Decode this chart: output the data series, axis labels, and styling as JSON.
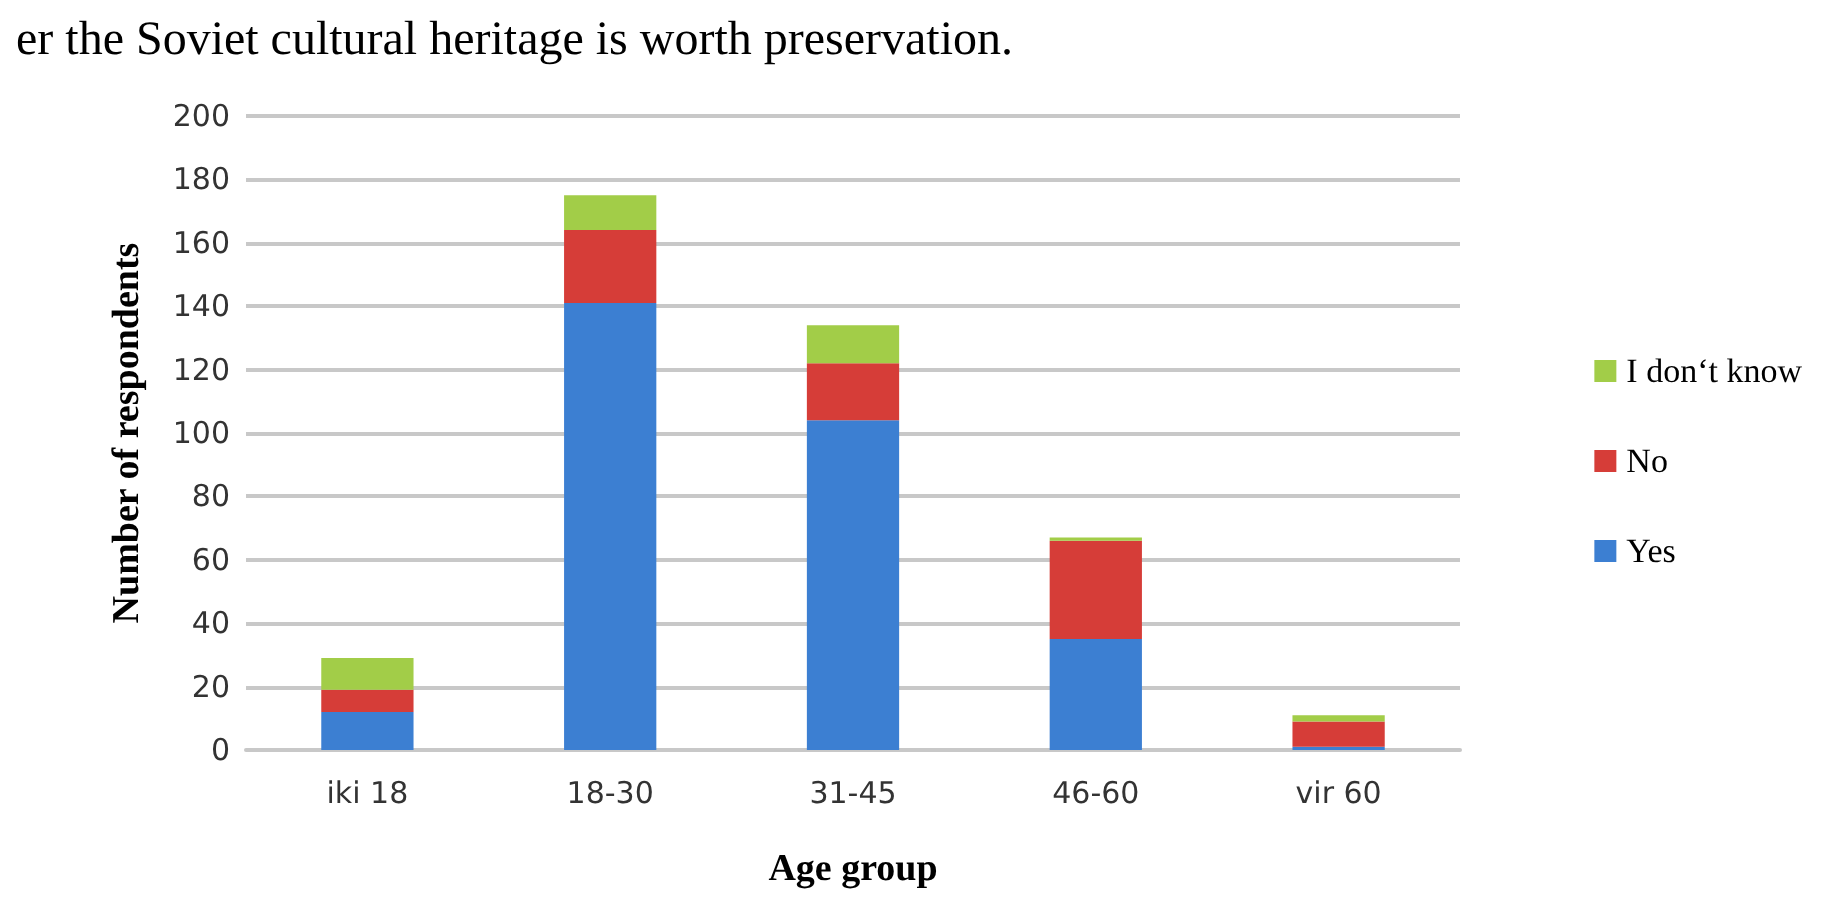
{
  "chart_data": {
    "type": "bar",
    "stacked": true,
    "xlabel": "Age group",
    "ylabel": "Number of respondents",
    "annotations": [
      "er the Soviet cultural heritage is worth preservation."
    ],
    "categories": [
      "iki 18",
      "18-30",
      "31-45",
      "46-60",
      "vir 60"
    ],
    "series": [
      {
        "name": "Yes",
        "color": "#3c7fd2",
        "values": [
          12,
          141,
          104,
          35,
          1
        ]
      },
      {
        "name": "No",
        "color": "#d63d38",
        "values": [
          7,
          23,
          18,
          31,
          8
        ]
      },
      {
        "name": "I don‘t know",
        "color": "#a2cd48",
        "values": [
          10,
          11,
          12,
          1,
          2
        ]
      }
    ],
    "ylim": [
      0,
      200
    ],
    "yticks": [
      0,
      20,
      40,
      60,
      80,
      100,
      120,
      140,
      160,
      180,
      200
    ],
    "grid": "y",
    "legend": "right"
  }
}
